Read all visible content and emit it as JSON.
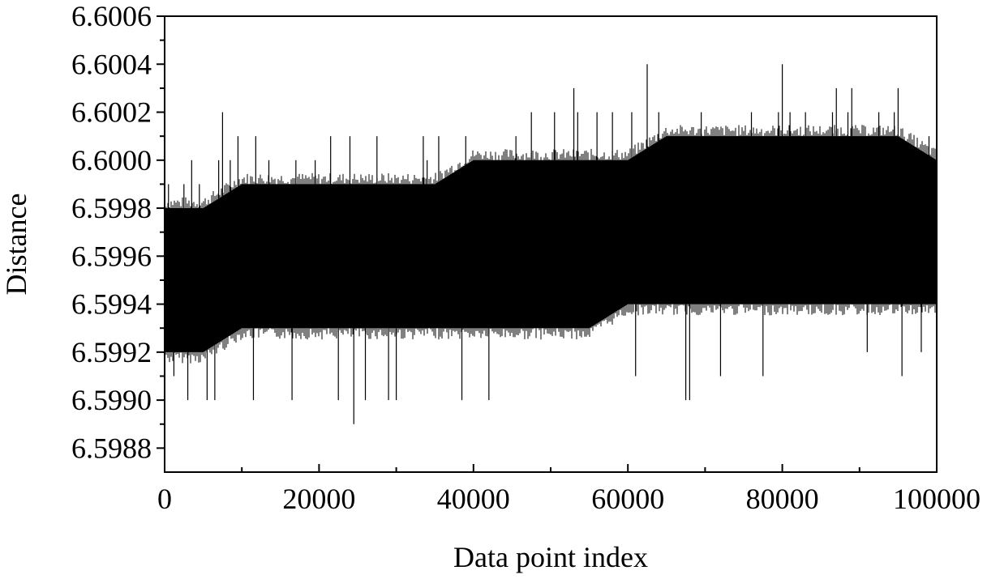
{
  "chart_data": {
    "type": "line",
    "title": "",
    "xlabel": "Data point index",
    "ylabel": "Distance",
    "xlim": [
      0,
      100000
    ],
    "ylim": [
      6.5987,
      6.6006
    ],
    "x_ticks": [
      {
        "value": 0,
        "label": "0"
      },
      {
        "value": 20000,
        "label": "20000"
      },
      {
        "value": 40000,
        "label": "40000"
      },
      {
        "value": 60000,
        "label": "60000"
      },
      {
        "value": 80000,
        "label": "80000"
      },
      {
        "value": 100000,
        "label": "100000"
      }
    ],
    "y_ticks": [
      {
        "value": 6.5988,
        "label": "6.5988"
      },
      {
        "value": 6.599,
        "label": "6.5990"
      },
      {
        "value": 6.5992,
        "label": "6.5992"
      },
      {
        "value": 6.5994,
        "label": "6.5994"
      },
      {
        "value": 6.5996,
        "label": "6.5996"
      },
      {
        "value": 6.5998,
        "label": "6.5998"
      },
      {
        "value": 6.6,
        "label": "6.6000"
      },
      {
        "value": 6.6002,
        "label": "6.6002"
      },
      {
        "value": 6.6004,
        "label": "6.6004"
      },
      {
        "value": 6.6006,
        "label": "6.6006"
      }
    ],
    "grid": false,
    "legend": "none",
    "series": [
      {
        "color": "#000000",
        "x": [
          0,
          5000,
          10000,
          15000,
          20000,
          25000,
          30000,
          35000,
          40000,
          45000,
          50000,
          55000,
          60000,
          65000,
          70000,
          75000,
          80000,
          85000,
          90000,
          95000,
          100000
        ],
        "upper": [
          6.5998,
          6.5998,
          6.5999,
          6.5999,
          6.5999,
          6.5999,
          6.5999,
          6.5999,
          6.6,
          6.6,
          6.6,
          6.6,
          6.6,
          6.6001,
          6.6001,
          6.6001,
          6.6001,
          6.6001,
          6.6001,
          6.6001,
          6.6
        ],
        "lower": [
          6.5992,
          6.5992,
          6.5993,
          6.5993,
          6.5993,
          6.5993,
          6.5993,
          6.5993,
          6.5993,
          6.5993,
          6.5993,
          6.5993,
          6.5994,
          6.5994,
          6.5994,
          6.5994,
          6.5994,
          6.5994,
          6.5994,
          6.5994,
          6.5994
        ],
        "spikes": [
          {
            "x": 500,
            "y": 6.5999
          },
          {
            "x": 1200,
            "y": 6.5991
          },
          {
            "x": 2500,
            "y": 6.5999
          },
          {
            "x": 3000,
            "y": 6.599
          },
          {
            "x": 3500,
            "y": 6.6
          },
          {
            "x": 4500,
            "y": 6.5999
          },
          {
            "x": 5500,
            "y": 6.599
          },
          {
            "x": 6500,
            "y": 6.599
          },
          {
            "x": 7000,
            "y": 6.6
          },
          {
            "x": 7500,
            "y": 6.6002
          },
          {
            "x": 8500,
            "y": 6.6
          },
          {
            "x": 9500,
            "y": 6.6001
          },
          {
            "x": 11500,
            "y": 6.599
          },
          {
            "x": 11800,
            "y": 6.6001
          },
          {
            "x": 13500,
            "y": 6.6
          },
          {
            "x": 16500,
            "y": 6.599
          },
          {
            "x": 17000,
            "y": 6.6
          },
          {
            "x": 19500,
            "y": 6.6
          },
          {
            "x": 21500,
            "y": 6.6001
          },
          {
            "x": 22500,
            "y": 6.599
          },
          {
            "x": 24000,
            "y": 6.6001
          },
          {
            "x": 24500,
            "y": 6.5989
          },
          {
            "x": 26000,
            "y": 6.599
          },
          {
            "x": 27500,
            "y": 6.6001
          },
          {
            "x": 29000,
            "y": 6.599
          },
          {
            "x": 30000,
            "y": 6.599
          },
          {
            "x": 33500,
            "y": 6.6001
          },
          {
            "x": 34000,
            "y": 6.6
          },
          {
            "x": 35500,
            "y": 6.6001
          },
          {
            "x": 38500,
            "y": 6.599
          },
          {
            "x": 39000,
            "y": 6.6001
          },
          {
            "x": 42000,
            "y": 6.599
          },
          {
            "x": 45500,
            "y": 6.6001
          },
          {
            "x": 47500,
            "y": 6.6002
          },
          {
            "x": 50500,
            "y": 6.6002
          },
          {
            "x": 53000,
            "y": 6.6003
          },
          {
            "x": 53500,
            "y": 6.6002
          },
          {
            "x": 56000,
            "y": 6.6002
          },
          {
            "x": 58000,
            "y": 6.6002
          },
          {
            "x": 60500,
            "y": 6.6002
          },
          {
            "x": 61000,
            "y": 6.5991
          },
          {
            "x": 62500,
            "y": 6.6004
          },
          {
            "x": 64000,
            "y": 6.6002
          },
          {
            "x": 67500,
            "y": 6.599
          },
          {
            "x": 68000,
            "y": 6.599
          },
          {
            "x": 69500,
            "y": 6.6002
          },
          {
            "x": 72000,
            "y": 6.5991
          },
          {
            "x": 74500,
            "y": 6.6001
          },
          {
            "x": 76000,
            "y": 6.6002
          },
          {
            "x": 77500,
            "y": 6.5991
          },
          {
            "x": 79500,
            "y": 6.6002
          },
          {
            "x": 80000,
            "y": 6.6004
          },
          {
            "x": 81000,
            "y": 6.6002
          },
          {
            "x": 83000,
            "y": 6.6002
          },
          {
            "x": 86500,
            "y": 6.6002
          },
          {
            "x": 87000,
            "y": 6.6003
          },
          {
            "x": 88500,
            "y": 6.6002
          },
          {
            "x": 89000,
            "y": 6.6003
          },
          {
            "x": 91000,
            "y": 6.5992
          },
          {
            "x": 92500,
            "y": 6.6002
          },
          {
            "x": 94500,
            "y": 6.6002
          },
          {
            "x": 95000,
            "y": 6.6003
          },
          {
            "x": 95500,
            "y": 6.5991
          },
          {
            "x": 98000,
            "y": 6.5992
          },
          {
            "x": 99000,
            "y": 6.6001
          }
        ]
      }
    ]
  }
}
